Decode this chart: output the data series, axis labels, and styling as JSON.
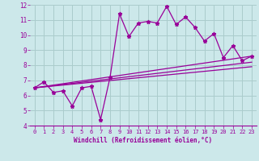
{
  "xlabel": "Windchill (Refroidissement éolien,°C)",
  "bg_color": "#cce8ea",
  "grid_color": "#aacccc",
  "line_color": "#990099",
  "xlim": [
    -0.5,
    23.5
  ],
  "ylim": [
    4,
    12
  ],
  "xticks": [
    0,
    1,
    2,
    3,
    4,
    5,
    6,
    7,
    8,
    9,
    10,
    11,
    12,
    13,
    14,
    15,
    16,
    17,
    18,
    19,
    20,
    21,
    22,
    23
  ],
  "yticks": [
    4,
    5,
    6,
    7,
    8,
    9,
    10,
    11,
    12
  ],
  "series1_x": [
    0,
    1,
    2,
    3,
    4,
    5,
    6,
    7,
    8,
    9,
    10,
    11,
    12,
    13,
    14,
    15,
    16,
    17,
    18,
    19,
    20,
    21,
    22,
    23
  ],
  "series1_y": [
    6.5,
    6.9,
    6.2,
    6.3,
    5.3,
    6.5,
    6.6,
    4.4,
    7.2,
    11.4,
    9.9,
    10.8,
    10.9,
    10.8,
    11.9,
    10.7,
    11.2,
    10.5,
    9.6,
    10.1,
    8.5,
    9.3,
    8.3,
    8.6
  ],
  "series2_x": [
    0,
    23
  ],
  "series2_y": [
    6.5,
    8.6
  ],
  "series3_x": [
    0,
    23
  ],
  "series3_y": [
    6.5,
    8.2
  ],
  "series4_x": [
    0,
    23
  ],
  "series4_y": [
    6.5,
    7.9
  ]
}
